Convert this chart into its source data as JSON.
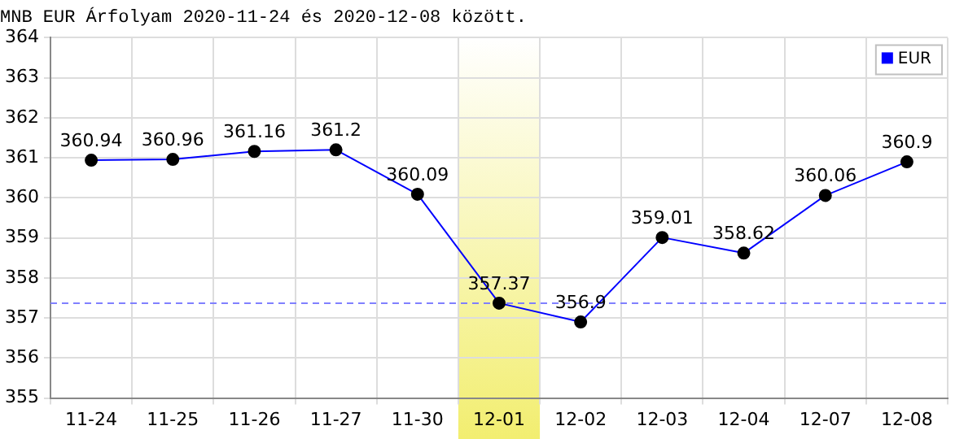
{
  "chart_data": {
    "type": "line",
    "title": "MNB EUR Árfolyam 2020-11-24 és 2020-12-08 között.",
    "categories": [
      "11-24",
      "11-25",
      "11-26",
      "11-27",
      "11-30",
      "12-01",
      "12-02",
      "12-03",
      "12-04",
      "12-07",
      "12-08"
    ],
    "series": [
      {
        "name": "EUR",
        "color": "#0000ff",
        "values": [
          360.94,
          360.96,
          361.16,
          361.2,
          360.09,
          357.37,
          356.9,
          359.01,
          358.62,
          360.06,
          360.9
        ]
      }
    ],
    "ylim": [
      355,
      364
    ],
    "yticks": [
      355,
      356,
      357,
      358,
      359,
      360,
      361,
      362,
      363,
      364
    ],
    "grid": true,
    "legend": "top right",
    "marker": "circle",
    "line_style": "solid",
    "data_labels": true,
    "ref_lines": [
      {
        "axis": "y",
        "value": 357.37,
        "color": "#8080ff",
        "line_style": "dashed"
      }
    ],
    "bands": [
      {
        "axis": "x",
        "from": "12-01",
        "to": "12-01",
        "color": "#f2ee70"
      }
    ]
  }
}
